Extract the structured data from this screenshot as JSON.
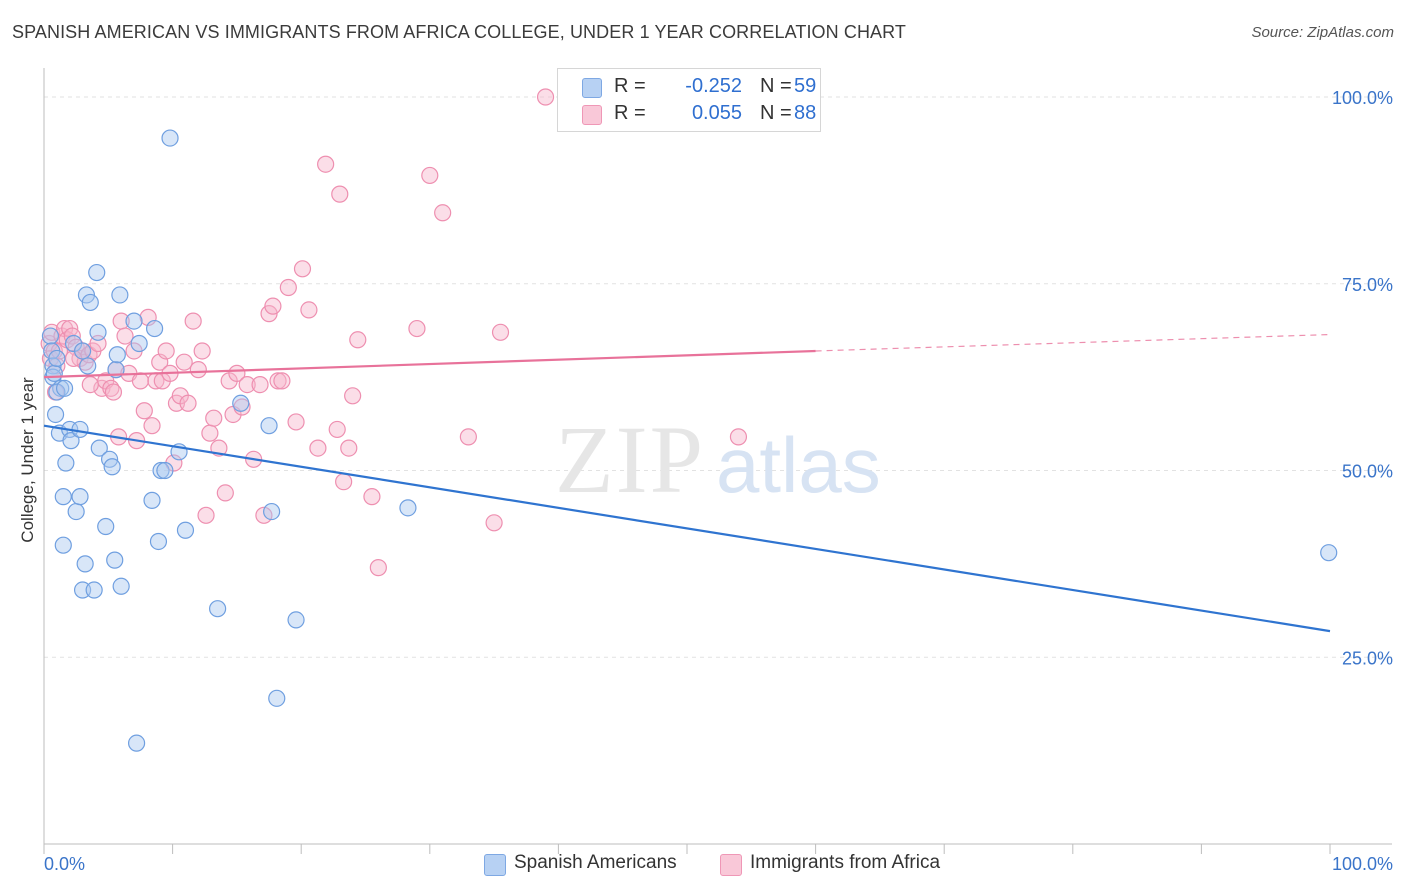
{
  "title": "SPANISH AMERICAN VS IMMIGRANTS FROM AFRICA COLLEGE, UNDER 1 YEAR CORRELATION CHART",
  "source": "Source: ZipAtlas.com",
  "watermark": {
    "zip": "ZIP",
    "atlas": "atlas"
  },
  "legend_top": {
    "rows": [
      {
        "r_label": "R =",
        "r_value": "-0.252",
        "n_label": "N =",
        "n_value": "59"
      },
      {
        "r_label": "R =",
        "r_value": "0.055",
        "n_label": "N =",
        "n_value": "88"
      }
    ]
  },
  "legend_bottom": {
    "items": [
      {
        "label": "Spanish Americans"
      },
      {
        "label": "Immigrants from Africa"
      }
    ]
  },
  "colors": {
    "blue_fill": "#a9c7ef",
    "blue_stroke": "#6f9fe0",
    "blue_line": "#2f74d0",
    "pink_fill": "#f6b5cb",
    "pink_stroke": "#ee8fb0",
    "pink_line": "#e8729a",
    "axis_label": "#3a74c9",
    "grid": "#e2e2e2"
  },
  "chart_data": {
    "type": "scatter",
    "title": "SPANISH AMERICAN VS IMMIGRANTS FROM AFRICA COLLEGE, UNDER 1 YEAR CORRELATION CHART",
    "xlabel": "",
    "ylabel": "College, Under 1 year",
    "xlim": [
      0,
      100
    ],
    "ylim": [
      0,
      102
    ],
    "x_tick_labels": [
      "0.0%",
      "100.0%"
    ],
    "y_tick_labels": [
      "25.0%",
      "50.0%",
      "75.0%",
      "100.0%"
    ],
    "y_ticks": [
      25,
      50,
      75,
      100
    ],
    "grid": true,
    "legend_position": "top-center",
    "series": [
      {
        "name": "Spanish Americans",
        "r": -0.252,
        "n": 59,
        "trend": {
          "x": [
            0,
            100
          ],
          "y": [
            56,
            28.5
          ],
          "dashed_from": null
        },
        "points": [
          [
            0.5,
            68
          ],
          [
            0.6,
            66
          ],
          [
            0.7,
            64
          ],
          [
            0.7,
            62.5
          ],
          [
            0.8,
            63
          ],
          [
            0.9,
            57.5
          ],
          [
            1.0,
            65
          ],
          [
            1.2,
            55
          ],
          [
            1.3,
            61
          ],
          [
            1.5,
            46.5
          ],
          [
            1.5,
            40
          ],
          [
            1.7,
            51
          ],
          [
            2.0,
            55.5
          ],
          [
            2.1,
            54
          ],
          [
            2.3,
            67
          ],
          [
            2.5,
            44.5
          ],
          [
            2.8,
            55.5
          ],
          [
            2.8,
            46.5
          ],
          [
            3.0,
            34
          ],
          [
            3.2,
            37.5
          ],
          [
            3.3,
            73.5
          ],
          [
            3.4,
            64
          ],
          [
            3.6,
            72.5
          ],
          [
            3.9,
            34
          ],
          [
            4.1,
            76.5
          ],
          [
            4.2,
            68.5
          ],
          [
            4.3,
            53
          ],
          [
            4.8,
            42.5
          ],
          [
            5.1,
            51.5
          ],
          [
            5.3,
            50.5
          ],
          [
            5.5,
            38
          ],
          [
            5.6,
            63.5
          ],
          [
            5.7,
            65.5
          ],
          [
            5.9,
            73.5
          ],
          [
            6.0,
            34.5
          ],
          [
            7.0,
            70
          ],
          [
            7.2,
            13.5
          ],
          [
            7.4,
            67
          ],
          [
            8.4,
            46
          ],
          [
            8.6,
            69
          ],
          [
            8.9,
            40.5
          ],
          [
            9.1,
            50
          ],
          [
            9.4,
            50
          ],
          [
            9.8,
            94.5
          ],
          [
            10.5,
            52.5
          ],
          [
            11.0,
            42
          ],
          [
            13.5,
            31.5
          ],
          [
            15.3,
            59
          ],
          [
            17.5,
            56
          ],
          [
            17.7,
            44.5
          ],
          [
            18.1,
            19.5
          ],
          [
            19.6,
            30
          ],
          [
            28.3,
            45
          ],
          [
            1.0,
            60.5
          ],
          [
            1.6,
            61
          ],
          [
            3.0,
            66
          ],
          [
            99.9,
            39
          ]
        ]
      },
      {
        "name": "Immigrants from Africa",
        "r": 0.055,
        "n": 88,
        "trend": {
          "x": [
            0,
            60,
            100
          ],
          "y": [
            62.5,
            66,
            68.2
          ],
          "dashed_from": 60
        },
        "points": [
          [
            0.4,
            67
          ],
          [
            0.5,
            65
          ],
          [
            0.6,
            68.5
          ],
          [
            0.8,
            66
          ],
          [
            1.0,
            64
          ],
          [
            1.2,
            66
          ],
          [
            1.4,
            68
          ],
          [
            1.6,
            69
          ],
          [
            1.8,
            67.5
          ],
          [
            2.0,
            69
          ],
          [
            2.2,
            68
          ],
          [
            2.5,
            66.5
          ],
          [
            2.8,
            65
          ],
          [
            3.0,
            66
          ],
          [
            3.2,
            64.5
          ],
          [
            3.5,
            65.5
          ],
          [
            3.8,
            66
          ],
          [
            4.2,
            67
          ],
          [
            4.5,
            61
          ],
          [
            4.8,
            62
          ],
          [
            5.2,
            61
          ],
          [
            5.4,
            60.5
          ],
          [
            5.6,
            63.5
          ],
          [
            5.8,
            54.5
          ],
          [
            6.0,
            70
          ],
          [
            6.3,
            68
          ],
          [
            6.6,
            63
          ],
          [
            7.0,
            66
          ],
          [
            7.2,
            54
          ],
          [
            7.5,
            62
          ],
          [
            7.8,
            58
          ],
          [
            8.1,
            70.5
          ],
          [
            8.4,
            56
          ],
          [
            8.7,
            62
          ],
          [
            9.0,
            64.5
          ],
          [
            9.2,
            62
          ],
          [
            9.5,
            66
          ],
          [
            9.8,
            63
          ],
          [
            10.1,
            51
          ],
          [
            10.3,
            59
          ],
          [
            10.6,
            60
          ],
          [
            10.9,
            64.5
          ],
          [
            11.2,
            59
          ],
          [
            11.6,
            70
          ],
          [
            12.0,
            63.5
          ],
          [
            12.3,
            66
          ],
          [
            12.6,
            44
          ],
          [
            12.9,
            55
          ],
          [
            13.2,
            57
          ],
          [
            13.6,
            53
          ],
          [
            14.1,
            47
          ],
          [
            14.4,
            62
          ],
          [
            14.7,
            57.5
          ],
          [
            15.0,
            63
          ],
          [
            15.4,
            58.5
          ],
          [
            15.8,
            61.5
          ],
          [
            16.3,
            51.5
          ],
          [
            16.8,
            61.5
          ],
          [
            17.1,
            44
          ],
          [
            17.5,
            71
          ],
          [
            17.8,
            72
          ],
          [
            18.2,
            62
          ],
          [
            18.5,
            62
          ],
          [
            19.0,
            74.5
          ],
          [
            19.6,
            56.5
          ],
          [
            20.1,
            77
          ],
          [
            20.6,
            71.5
          ],
          [
            21.3,
            53
          ],
          [
            21.9,
            91
          ],
          [
            22.8,
            55.5
          ],
          [
            23.0,
            87
          ],
          [
            23.3,
            48.5
          ],
          [
            23.7,
            53
          ],
          [
            24.0,
            60
          ],
          [
            24.4,
            67.5
          ],
          [
            25.5,
            46.5
          ],
          [
            26.0,
            37
          ],
          [
            29.0,
            69
          ],
          [
            30.0,
            89.5
          ],
          [
            31.0,
            84.5
          ],
          [
            33.0,
            54.5
          ],
          [
            35.0,
            43
          ],
          [
            35.5,
            68.5
          ],
          [
            39.0,
            100
          ],
          [
            54.0,
            54.5
          ],
          [
            0.9,
            60.5
          ],
          [
            2.3,
            65
          ],
          [
            3.6,
            61.5
          ]
        ]
      }
    ]
  }
}
